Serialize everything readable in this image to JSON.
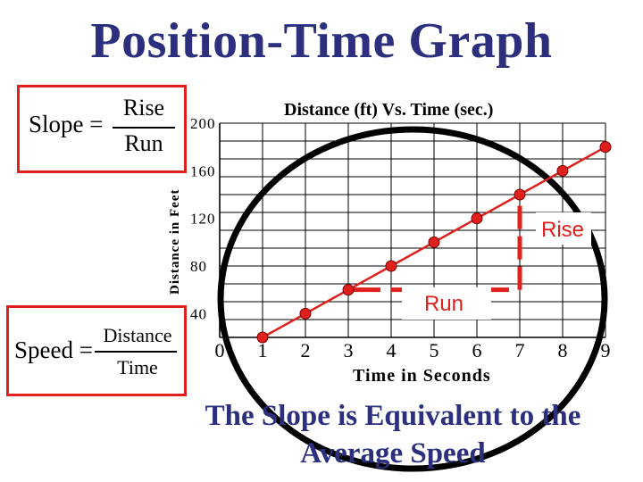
{
  "title": "Position-Time Graph",
  "slope_formula": {
    "lhs": "Slope =",
    "numerator": "Rise",
    "denominator": "Run"
  },
  "speed_formula": {
    "lhs": "Speed =",
    "numerator": "Distance",
    "denominator": "Time"
  },
  "caption": "The Slope is Equivalent to the Average Speed",
  "chart_data": {
    "type": "line",
    "title": "Distance (ft) Vs. Time (sec.)",
    "xlabel": "Time in Seconds",
    "ylabel": "Distance in Feet",
    "x_ticks": [
      "0",
      "1",
      "2",
      "3",
      "4",
      "5",
      "6",
      "7",
      "8",
      "9"
    ],
    "y_ticks": [
      "200",
      "160",
      "120",
      "80",
      "40"
    ],
    "xlim": [
      0,
      9
    ],
    "ylim": [
      20,
      200
    ],
    "grid": true,
    "series": [
      {
        "x": [
          1,
          2,
          3,
          4,
          5,
          6,
          7,
          8,
          9
        ],
        "y": [
          20,
          40,
          60,
          80,
          100,
          120,
          140,
          160,
          180
        ]
      }
    ],
    "annotations": {
      "rise_label": "Rise",
      "run_label": "Run",
      "rise_x": 7,
      "rise_y": [
        60,
        140
      ],
      "run_y": 60,
      "run_x": [
        3,
        7
      ]
    },
    "line_color": "#e0201c",
    "circle_color": "#000000"
  }
}
